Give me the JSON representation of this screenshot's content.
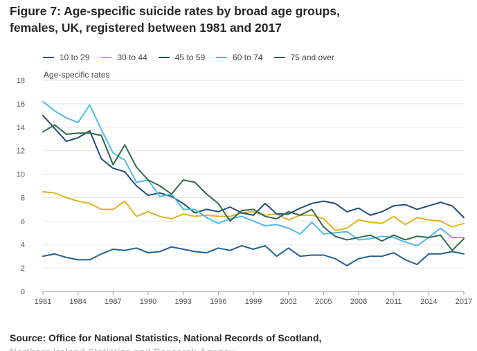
{
  "title_line1": "Figure 7: Age-specific suicide rates by broad age groups,",
  "title_line2": "females, UK, registered between 1981 and 2017",
  "source_line1": "Source: Office for National Statistics, National Records of Scotland,",
  "source_line2": "Northern Ireland Statistics and Research Agency",
  "chart_data": {
    "type": "line",
    "title": "Age-specific suicide rates by broad age groups, females, UK, registered between 1981 and 2017",
    "ylabel": "Age-specific rates",
    "xlabel": "",
    "ylim": [
      0,
      18
    ],
    "yticks": [
      0,
      2,
      4,
      6,
      8,
      10,
      12,
      14,
      16,
      18
    ],
    "xticks": [
      1981,
      1984,
      1987,
      1990,
      1993,
      1996,
      1999,
      2002,
      2005,
      2008,
      2011,
      2014,
      2017
    ],
    "grid": "horizontal",
    "legend_position": "top",
    "x": [
      1981,
      1982,
      1983,
      1984,
      1985,
      1986,
      1987,
      1988,
      1989,
      1990,
      1991,
      1992,
      1993,
      1994,
      1995,
      1996,
      1997,
      1998,
      1999,
      2000,
      2001,
      2002,
      2003,
      2004,
      2005,
      2006,
      2007,
      2008,
      2009,
      2010,
      2011,
      2012,
      2013,
      2014,
      2015,
      2016,
      2017
    ],
    "series": [
      {
        "name": "10 to 29",
        "color": "#206095",
        "values": [
          3.0,
          3.2,
          2.9,
          2.7,
          2.7,
          3.2,
          3.6,
          3.5,
          3.7,
          3.3,
          3.4,
          3.8,
          3.6,
          3.4,
          3.3,
          3.7,
          3.5,
          3.9,
          3.6,
          3.9,
          3.0,
          3.7,
          3.0,
          3.1,
          3.1,
          2.8,
          2.2,
          2.8,
          3.0,
          3.0,
          3.3,
          2.7,
          2.3,
          3.2,
          3.2,
          3.4,
          3.2
        ]
      },
      {
        "name": "30 to 44",
        "color": "#e0b31b",
        "values": [
          8.5,
          8.4,
          8.0,
          7.7,
          7.5,
          7.0,
          7.0,
          7.7,
          6.4,
          6.8,
          6.4,
          6.2,
          6.6,
          6.4,
          6.5,
          6.4,
          6.4,
          6.7,
          6.8,
          6.5,
          6.6,
          6.1,
          6.5,
          6.5,
          6.2,
          5.2,
          5.4,
          6.1,
          5.9,
          5.8,
          6.4,
          5.7,
          6.3,
          6.1,
          6.0,
          5.5,
          5.8
        ]
      },
      {
        "name": "45 to 59",
        "color": "#1f4e79",
        "values": [
          15.0,
          13.9,
          12.8,
          13.1,
          13.7,
          11.3,
          10.5,
          10.2,
          9.0,
          8.2,
          8.4,
          8.1,
          7.5,
          6.7,
          7.0,
          6.8,
          7.2,
          6.7,
          6.5,
          7.5,
          6.6,
          6.6,
          7.1,
          7.5,
          7.7,
          7.5,
          6.8,
          7.1,
          6.5,
          6.8,
          7.3,
          7.4,
          7.0,
          7.3,
          7.6,
          7.3,
          6.3
        ]
      },
      {
        "name": "60 to 74",
        "color": "#4ebaea",
        "values": [
          16.2,
          15.4,
          14.8,
          14.4,
          15.9,
          13.8,
          11.8,
          11.2,
          9.3,
          9.5,
          8.1,
          8.3,
          7.0,
          7.0,
          6.3,
          5.8,
          6.2,
          6.4,
          6.0,
          5.6,
          5.7,
          5.4,
          4.9,
          5.9,
          4.9,
          5.0,
          5.1,
          4.4,
          4.5,
          4.7,
          4.6,
          4.2,
          3.9,
          4.6,
          5.4,
          4.6,
          4.6
        ]
      },
      {
        "name": "75 and over",
        "color": "#2e6b4a",
        "values": [
          13.6,
          14.2,
          13.4,
          13.5,
          13.5,
          13.3,
          10.8,
          12.5,
          10.6,
          9.5,
          9.0,
          8.3,
          9.5,
          9.3,
          8.3,
          7.5,
          6.0,
          6.9,
          7.0,
          6.4,
          6.2,
          6.8,
          6.5,
          7.0,
          5.5,
          4.7,
          4.4,
          4.6,
          4.8,
          4.3,
          4.8,
          4.4,
          4.7,
          4.6,
          4.8,
          3.5,
          4.5
        ]
      }
    ]
  }
}
